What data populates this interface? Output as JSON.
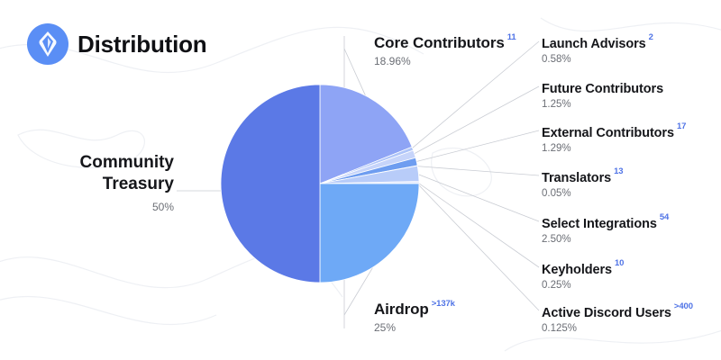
{
  "header": {
    "title": "Distribution",
    "logo_icon": "ens-logo-icon"
  },
  "colors": {
    "logo_bg": "#5a8ef5",
    "accent": "#4f73e6",
    "community_treasury": "#5b79e6",
    "core_contributors": "#8ea4f5",
    "airdrop": "#6ea9f6",
    "small_slices": [
      "#aec4f8",
      "#c6d4fa",
      "#6e9df0",
      "#d5e0fb",
      "#b8ccf9",
      "#e2e9fd",
      "#cbd8fb"
    ]
  },
  "chart_data": {
    "type": "pie",
    "title": "Distribution",
    "slices": [
      {
        "label": "Core Contributors",
        "value": 18.96,
        "percent": "18.96%",
        "count": "11"
      },
      {
        "label": "Launch Advisors",
        "value": 0.58,
        "percent": "0.58%",
        "count": "2"
      },
      {
        "label": "Future Contributors",
        "value": 1.25,
        "percent": "1.25%",
        "count": ""
      },
      {
        "label": "External Contributors",
        "value": 1.29,
        "percent": "1.29%",
        "count": "17"
      },
      {
        "label": "Translators",
        "value": 0.05,
        "percent": "0.05%",
        "count": "13"
      },
      {
        "label": "Select Integrations",
        "value": 2.5,
        "percent": "2.50%",
        "count": "54"
      },
      {
        "label": "Keyholders",
        "value": 0.25,
        "percent": "0.25%",
        "count": "10"
      },
      {
        "label": "Active Discord Users",
        "value": 0.125,
        "percent": "0.125%",
        "count": ">400"
      },
      {
        "label": "Airdrop",
        "value": 25,
        "percent": "25%",
        "count": ">137k"
      },
      {
        "label": "Community Treasury",
        "value": 50,
        "percent": "50%",
        "count": ""
      }
    ]
  }
}
